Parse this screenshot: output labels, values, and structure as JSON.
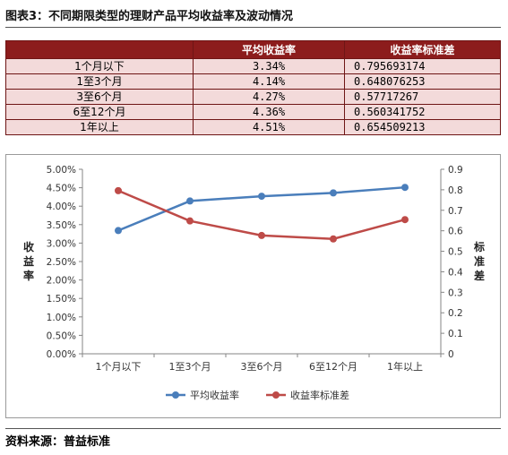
{
  "figure_title": "图表3：不同期限类型的理财产品平均收益率及波动情况",
  "table": {
    "headers": [
      "",
      "平均收益率",
      "收益率标准差"
    ],
    "rows": [
      [
        "1个月以下",
        "3.34%",
        "0.795693174"
      ],
      [
        "1至3个月",
        "4.14%",
        "0.648076253"
      ],
      [
        "3至6个月",
        "4.27%",
        "0.57717267"
      ],
      [
        "6至12个月",
        "4.36%",
        "0.560341752"
      ],
      [
        "1年以上",
        "4.51%",
        "0.654509213"
      ]
    ]
  },
  "chart_data": {
    "type": "line",
    "categories": [
      "1个月以下",
      "1至3个月",
      "3至6个月",
      "6至12个月",
      "1年以上"
    ],
    "series": [
      {
        "name": "平均收益率",
        "axis": "left",
        "color": "#4a7ebb",
        "values": [
          3.34,
          4.14,
          4.27,
          4.36,
          4.51
        ]
      },
      {
        "name": "收益率标准差",
        "axis": "right",
        "color": "#be4b48",
        "values": [
          0.795693174,
          0.648076253,
          0.57717267,
          0.560341752,
          0.654509213
        ]
      }
    ],
    "y_left": {
      "label": "收益率",
      "ylim": [
        0,
        5
      ],
      "ticks": [
        "0.00%",
        "0.50%",
        "1.00%",
        "1.50%",
        "2.00%",
        "2.50%",
        "3.00%",
        "3.50%",
        "4.00%",
        "4.50%",
        "5.00%"
      ]
    },
    "y_right": {
      "label": "标准差",
      "ylim": [
        0,
        0.9
      ],
      "ticks": [
        "0",
        "0.1",
        "0.2",
        "0.3",
        "0.4",
        "0.5",
        "0.6",
        "0.7",
        "0.8",
        "0.9"
      ]
    },
    "grid": false,
    "legend_position": "bottom"
  },
  "source": "资料来源：普益标准"
}
